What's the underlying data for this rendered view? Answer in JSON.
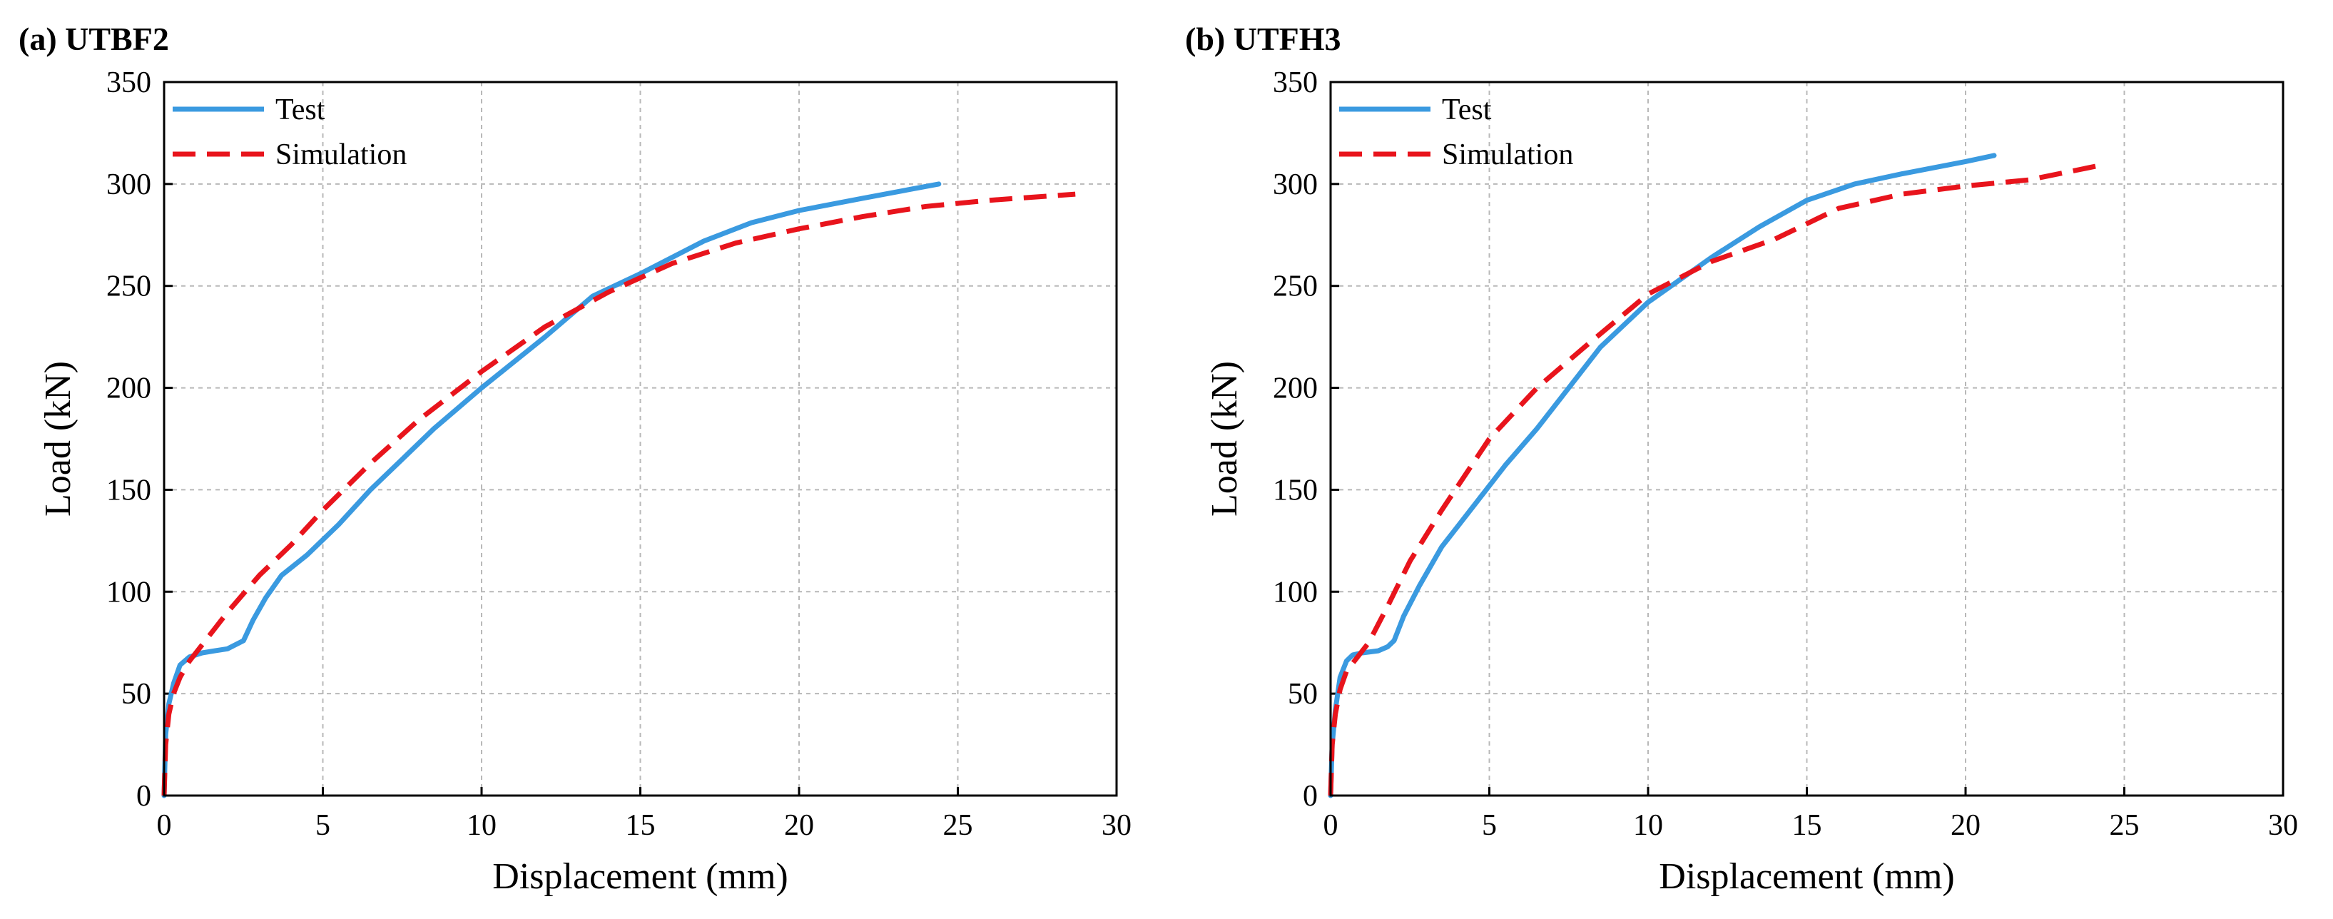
{
  "chart_data": [
    {
      "panel": "(a) UTBF2",
      "type": "line",
      "xlabel": "Displacement (mm)",
      "ylabel": "Load (kN)",
      "xlim": [
        0,
        30
      ],
      "ylim": [
        0,
        350
      ],
      "xticks": [
        0,
        5,
        10,
        15,
        20,
        25,
        30
      ],
      "yticks": [
        0,
        50,
        100,
        150,
        200,
        250,
        300,
        350
      ],
      "grid": true,
      "legend_position": "top-left",
      "series": [
        {
          "name": "Test",
          "color": "#3a9ae0",
          "style": "solid",
          "x": [
            0,
            0.05,
            0.15,
            0.3,
            0.5,
            0.8,
            1.2,
            1.6,
            2.0,
            2.5,
            2.8,
            3.2,
            3.7,
            4.5,
            5.5,
            6.5,
            7.5,
            8.5,
            10,
            12,
            13.5,
            15,
            17,
            18.5,
            20,
            22,
            24.4
          ],
          "y": [
            0,
            30,
            45,
            55,
            64,
            68,
            70,
            71,
            72,
            76,
            86,
            97,
            108,
            118,
            133,
            150,
            165,
            180,
            200,
            225,
            245,
            256,
            272,
            281,
            287,
            293,
            300
          ]
        },
        {
          "name": "Simulation",
          "color": "#e8141c",
          "style": "dashed",
          "x": [
            0,
            0.05,
            0.15,
            0.3,
            0.5,
            0.8,
            1.2,
            2.0,
            3.0,
            4.0,
            5.0,
            6.5,
            8.0,
            10,
            12,
            14,
            16,
            18,
            20,
            22,
            24,
            26,
            28.7
          ],
          "y": [
            0,
            25,
            40,
            50,
            58,
            66,
            74,
            90,
            108,
            123,
            140,
            163,
            184,
            208,
            230,
            247,
            261,
            271,
            278,
            284,
            289,
            292,
            295
          ]
        }
      ]
    },
    {
      "panel": "(b) UTFH3",
      "type": "line",
      "xlabel": "Displacement (mm)",
      "ylabel": "Load (kN)",
      "xlim": [
        0,
        30
      ],
      "ylim": [
        0,
        350
      ],
      "xticks": [
        0,
        5,
        10,
        15,
        20,
        25,
        30
      ],
      "yticks": [
        0,
        50,
        100,
        150,
        200,
        250,
        300,
        350
      ],
      "grid": true,
      "legend_position": "top-left",
      "series": [
        {
          "name": "Test",
          "color": "#3a9ae0",
          "style": "solid",
          "x": [
            0,
            0.05,
            0.15,
            0.3,
            0.5,
            0.7,
            1.0,
            1.5,
            1.8,
            2.0,
            2.3,
            2.8,
            3.5,
            4.5,
            5.5,
            6.5,
            7.5,
            8.5,
            10,
            12,
            13.5,
            15,
            16.5,
            18,
            20,
            20.9
          ],
          "y": [
            0,
            25,
            42,
            58,
            66,
            69,
            70,
            71,
            73,
            76,
            88,
            103,
            122,
            142,
            162,
            180,
            200,
            220,
            242,
            264,
            279,
            292,
            300,
            305,
            311,
            314
          ]
        },
        {
          "name": "Simulation",
          "color": "#e8141c",
          "style": "dashed",
          "x": [
            0,
            0.05,
            0.15,
            0.3,
            0.5,
            0.8,
            1.2,
            1.8,
            2.5,
            3.5,
            5.0,
            6.5,
            8.0,
            10,
            12,
            14,
            16,
            18,
            20,
            22,
            24.2
          ],
          "y": [
            0,
            25,
            40,
            52,
            61,
            67,
            75,
            93,
            115,
            140,
            175,
            200,
            220,
            246,
            262,
            273,
            288,
            295,
            299,
            302,
            309
          ]
        }
      ]
    }
  ]
}
